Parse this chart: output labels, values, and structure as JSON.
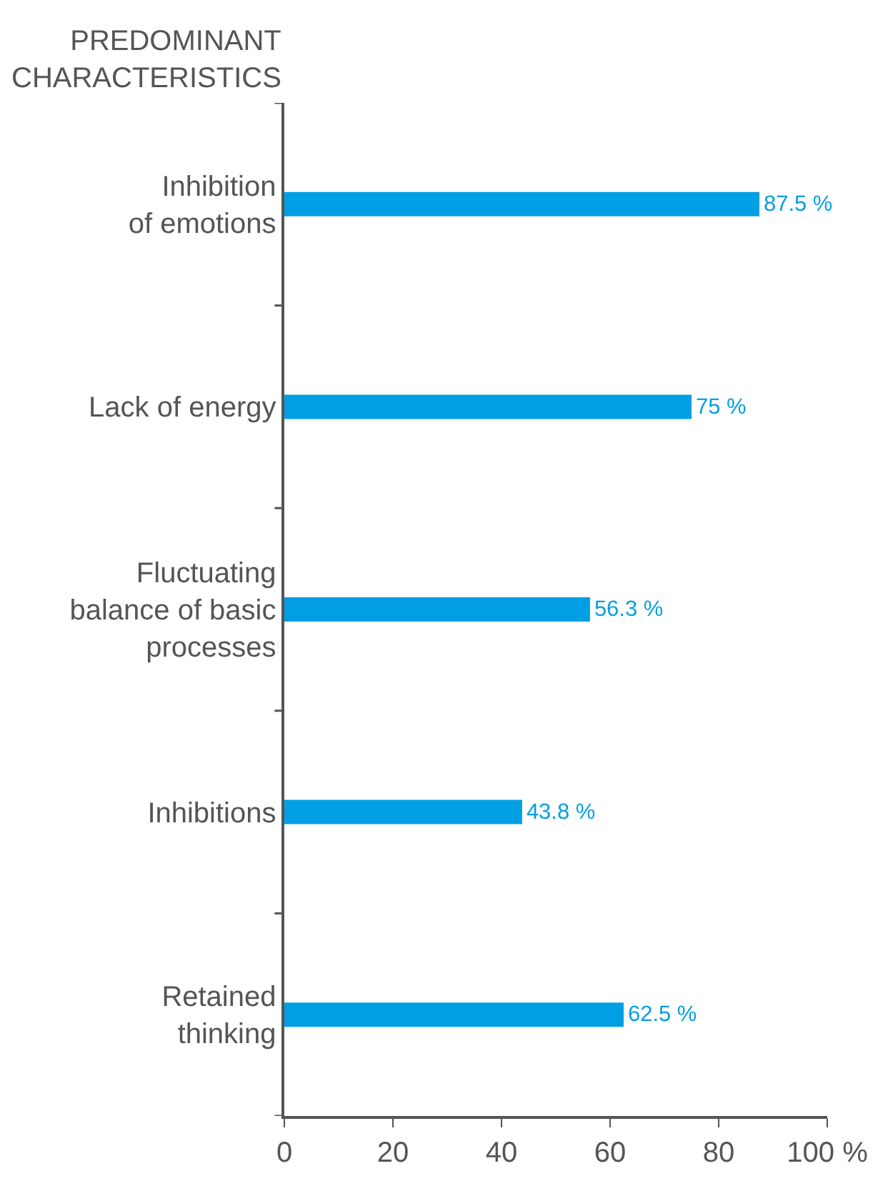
{
  "chart_data": {
    "type": "bar",
    "orientation": "horizontal",
    "ylabel": "PREDOMINANT\nCHARACTERISTICS",
    "categories": [
      "Inhibition\nof emotions",
      "Lack of energy",
      "Fluctuating\nbalance of basic\nprocesses",
      "Inhibitions",
      "Retained\nthinking"
    ],
    "series": [
      {
        "color": "#009fe3",
        "values": [
          87.5,
          75,
          56.3,
          43.8,
          62.5
        ],
        "value_labels": [
          "87.5 %",
          "75 %",
          "56.3 %",
          "43.8 %",
          "62.5 %"
        ]
      }
    ],
    "xlim": [
      0,
      100
    ],
    "xticks": [
      0,
      20,
      40,
      60,
      80,
      {
        "value": 100,
        "label": "100 %"
      }
    ],
    "legend": false
  }
}
